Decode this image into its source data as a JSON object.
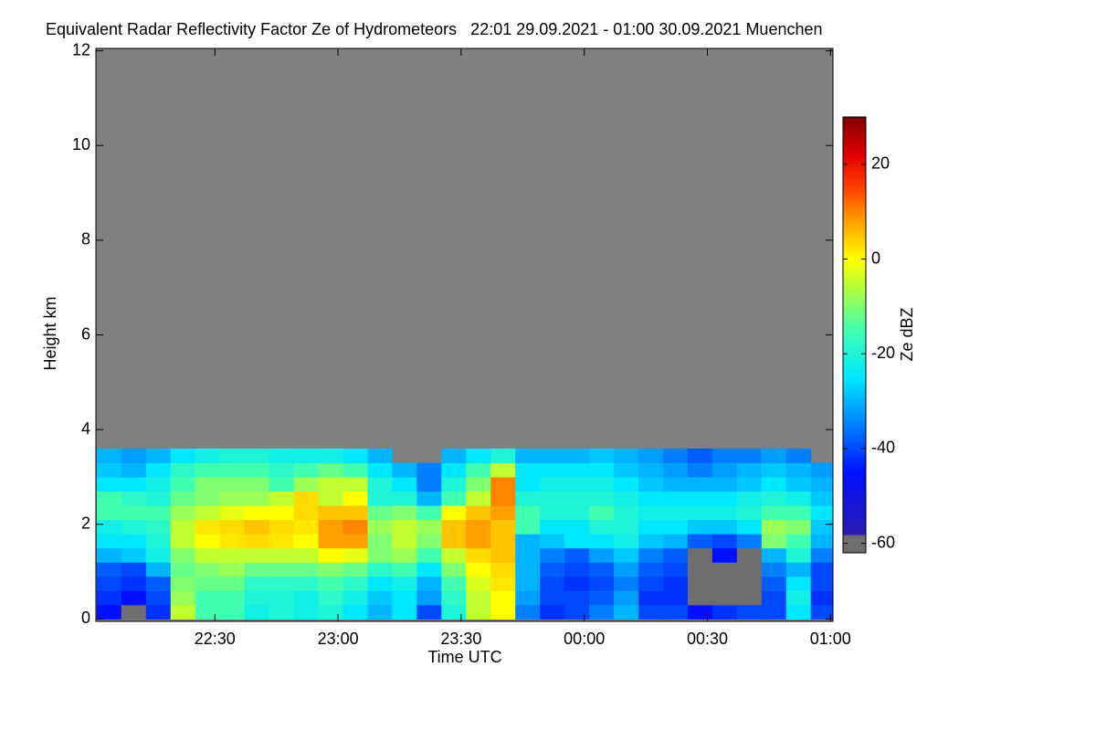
{
  "chart_data": {
    "type": "heatmap",
    "title": "Equivalent Radar Reflectivity Factor Ze of Hydrometeors   22:01 29.09.2021 - 01:00 30.09.2021 Muenchen",
    "x_label": "Time UTC",
    "y_label": "Height km",
    "colorbar_label": "Ze dBZ",
    "xlim": [
      22.0167,
      25.01
    ],
    "xticks": [
      {
        "value": 22.5,
        "label": "22:30"
      },
      {
        "value": 23,
        "label": "23:00"
      },
      {
        "value": 23.5,
        "label": "23:30"
      },
      {
        "value": 24,
        "label": "00:00"
      },
      {
        "value": 24.5,
        "label": "00:30"
      },
      {
        "value": 25,
        "label": "01:00"
      }
    ],
    "ylim": [
      -0.05,
      12.05
    ],
    "yticks": [
      0,
      2,
      4,
      6,
      8,
      10,
      12
    ],
    "zlim": [
      -62,
      30
    ],
    "zticks": [
      -60,
      -40,
      -20,
      0,
      20
    ],
    "missing_color": "#808080",
    "colorscale": [
      {
        "value": -62,
        "color": "#6e6e6e"
      },
      {
        "value": -58.5,
        "color": "#6e6e6e"
      },
      {
        "value": -58,
        "color": "#2a1ab0"
      },
      {
        "value": -45,
        "color": "#0010ff"
      },
      {
        "value": -35,
        "color": "#0080ff"
      },
      {
        "value": -25,
        "color": "#00e8ff"
      },
      {
        "value": -15,
        "color": "#40ffb0"
      },
      {
        "value": -5,
        "color": "#c0ff30"
      },
      {
        "value": 0,
        "color": "#ffff00"
      },
      {
        "value": 8,
        "color": "#ffa000"
      },
      {
        "value": 15,
        "color": "#ff4000"
      },
      {
        "value": 22,
        "color": "#e00000"
      },
      {
        "value": 30,
        "color": "#800000"
      }
    ],
    "x": [
      22.07,
      22.17,
      22.27,
      22.37,
      22.47,
      22.57,
      22.67,
      22.77,
      22.87,
      22.97,
      23.07,
      23.17,
      23.27,
      23.37,
      23.47,
      23.57,
      23.67,
      23.77,
      23.87,
      23.97,
      24.07,
      24.17,
      24.27,
      24.37,
      24.47,
      24.57,
      24.67,
      24.77,
      24.87,
      24.97
    ],
    "y": [
      0.15,
      0.45,
      0.75,
      1.05,
      1.35,
      1.65,
      1.95,
      2.25,
      2.55,
      2.85,
      3.15,
      3.45
    ],
    "z": [
      [
        -45,
        -42,
        -40,
        -38,
        -30,
        -25,
        -22,
        -15,
        -15,
        -25,
        -28,
        -30
      ],
      [
        -61,
        -45,
        -42,
        -40,
        -28,
        -25,
        -20,
        -15,
        -18,
        -25,
        -30,
        -32
      ],
      [
        -42,
        -40,
        -38,
        -30,
        -22,
        -20,
        -18,
        -15,
        -20,
        -22,
        -25,
        -30
      ],
      [
        -5,
        -8,
        -10,
        -12,
        -10,
        -5,
        -5,
        -8,
        -12,
        -15,
        -18,
        -25
      ],
      [
        -15,
        -15,
        -12,
        -10,
        -5,
        0,
        2,
        -5,
        -10,
        -10,
        -15,
        -22
      ],
      [
        -15,
        -15,
        -12,
        -8,
        -5,
        2,
        3,
        -2,
        -8,
        -10,
        -15,
        -20
      ],
      [
        -22,
        -20,
        -18,
        -12,
        -5,
        3,
        5,
        0,
        -8,
        -10,
        -15,
        -20
      ],
      [
        -20,
        -20,
        -18,
        -12,
        -5,
        2,
        3,
        0,
        -5,
        -15,
        -18,
        -22
      ],
      [
        -22,
        -22,
        -18,
        -12,
        -5,
        0,
        2,
        3,
        3,
        -8,
        -15,
        -22
      ],
      [
        -20,
        -18,
        -15,
        -10,
        0,
        8,
        8,
        5,
        -5,
        -5,
        -12,
        -22
      ],
      [
        -25,
        -22,
        -18,
        -12,
        -2,
        8,
        10,
        5,
        0,
        -5,
        -15,
        -25
      ],
      [
        -30,
        -28,
        -25,
        -18,
        -10,
        -10,
        -8,
        -12,
        -20,
        -20,
        -25,
        -30
      ],
      [
        -25,
        -25,
        -22,
        -15,
        -8,
        -5,
        -5,
        -10,
        -20,
        -25,
        -30,
        null
      ],
      [
        -40,
        -32,
        -30,
        -25,
        -15,
        -10,
        -8,
        -15,
        -30,
        -35,
        -35,
        null
      ],
      [
        -20,
        -18,
        -15,
        -10,
        -5,
        5,
        5,
        0,
        -15,
        -20,
        -25,
        -30
      ],
      [
        -5,
        -5,
        -3,
        0,
        3,
        8,
        8,
        5,
        -5,
        -10,
        -15,
        -25
      ],
      [
        0,
        0,
        2,
        3,
        5,
        5,
        5,
        8,
        10,
        10,
        -5,
        -20
      ],
      [
        -35,
        -32,
        -30,
        -30,
        -30,
        -30,
        -15,
        -15,
        -20,
        -25,
        -25,
        -30
      ],
      [
        -42,
        -40,
        -40,
        -38,
        -35,
        -28,
        -25,
        -20,
        -20,
        -22,
        -25,
        -30
      ],
      [
        -40,
        -40,
        -42,
        -40,
        -38,
        -25,
        -25,
        -20,
        -20,
        -22,
        -25,
        -30
      ],
      [
        -35,
        -38,
        -40,
        -38,
        -32,
        -25,
        -20,
        -15,
        -20,
        -22,
        -25,
        -28
      ],
      [
        -30,
        -32,
        -35,
        -32,
        -28,
        -22,
        -20,
        -20,
        -22,
        -25,
        -28,
        -30
      ],
      [
        -40,
        -42,
        -40,
        -38,
        -35,
        -28,
        -25,
        -22,
        -25,
        -28,
        -30,
        -32
      ],
      [
        -40,
        -42,
        -42,
        -40,
        -38,
        -30,
        -25,
        -22,
        -25,
        -30,
        -32,
        -35
      ],
      [
        -45,
        -61,
        -61,
        -61,
        -61,
        -38,
        -28,
        -22,
        -25,
        -30,
        -35,
        -38
      ],
      [
        -42,
        -61,
        -61,
        -61,
        -45,
        -40,
        -28,
        -22,
        -25,
        -30,
        -32,
        -35
      ],
      [
        -40,
        -61,
        -61,
        -61,
        -61,
        -35,
        -25,
        -20,
        -22,
        -28,
        -30,
        -35
      ],
      [
        -40,
        -40,
        -38,
        -35,
        -30,
        -10,
        -8,
        -15,
        -20,
        -25,
        -28,
        -32
      ],
      [
        -25,
        -22,
        -25,
        -30,
        -20,
        -15,
        -10,
        -15,
        -22,
        -28,
        -30,
        -35
      ],
      [
        -40,
        -42,
        -40,
        -40,
        -35,
        -30,
        -28,
        -25,
        -28,
        -30,
        -32,
        null
      ]
    ]
  }
}
